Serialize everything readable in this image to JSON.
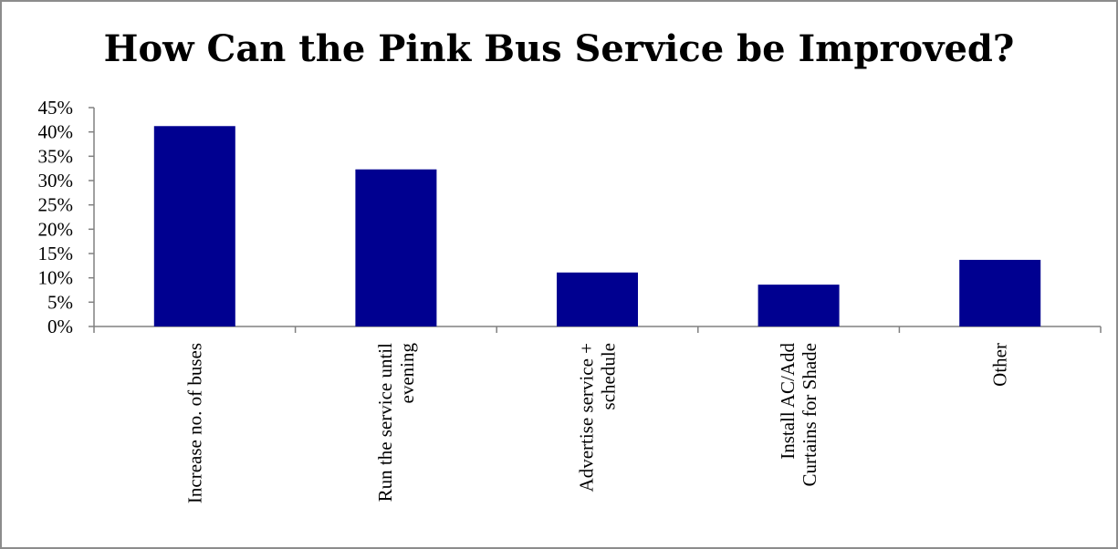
{
  "chart_data": {
    "type": "bar",
    "title": "How Can the Pink Bus Service be Improved?",
    "xlabel": "",
    "ylabel": "",
    "categories": [
      [
        "Increase no. of buses"
      ],
      [
        "Run the service until",
        "evening"
      ],
      [
        "Advertise service +",
        "schedule"
      ],
      [
        "Install AC/Add",
        "Curtains for Shade"
      ],
      [
        "Other"
      ]
    ],
    "values": [
      41.2,
      32.3,
      11.1,
      8.6,
      13.7
    ],
    "ylim": [
      0,
      45
    ],
    "yticks": [
      "0%",
      "5%",
      "10%",
      "15%",
      "20%",
      "25%",
      "30%",
      "35%",
      "40%",
      "45%"
    ],
    "grid": false,
    "legend": "none",
    "bar_color": "#000090"
  }
}
